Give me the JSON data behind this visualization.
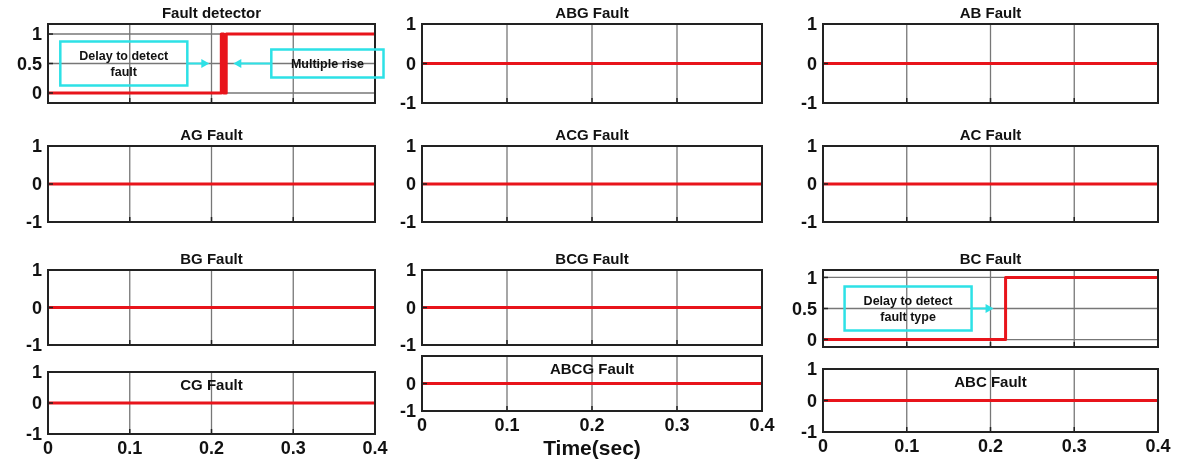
{
  "chart_data": [
    {
      "type": "line",
      "title": "Fault detector",
      "x": [
        0,
        0.212,
        0.212,
        0.215,
        0.215,
        0.218,
        0.218,
        0.4
      ],
      "series": [
        {
          "color": "#e8141b",
          "values": [
            0,
            0,
            1,
            1,
            0,
            0,
            1,
            1
          ]
        }
      ],
      "xlim": [
        0,
        0.4
      ],
      "xticks": [
        0,
        0.1,
        0.2,
        0.3,
        0.4
      ],
      "ylim": [
        -0.17,
        1.17
      ],
      "yticks": [
        0,
        0.5,
        1
      ],
      "grid": true,
      "tick_labels": "y",
      "annotations": [
        "Delay to detect fault",
        "Multiple rise"
      ]
    },
    {
      "type": "line",
      "title": "ABG Fault",
      "x": [
        0,
        0.4
      ],
      "series": [
        {
          "color": "#e8141b",
          "values": [
            0,
            0
          ]
        }
      ],
      "xlim": [
        0,
        0.4
      ],
      "xticks": [
        0,
        0.1,
        0.2,
        0.3,
        0.4
      ],
      "ylim": [
        -1,
        1
      ],
      "yticks": [
        -1,
        0,
        1
      ],
      "grid": true,
      "tick_labels": "y"
    },
    {
      "type": "line",
      "title": "AB Fault",
      "x": [
        0,
        0.4
      ],
      "series": [
        {
          "color": "#e8141b",
          "values": [
            0,
            0
          ]
        }
      ],
      "xlim": [
        0,
        0.4
      ],
      "xticks": [
        0,
        0.1,
        0.2,
        0.3,
        0.4
      ],
      "ylim": [
        -1,
        1
      ],
      "yticks": [
        -1,
        0,
        1
      ],
      "grid": true,
      "tick_labels": "y"
    },
    {
      "type": "line",
      "title": "AG Fault",
      "x": [
        0,
        0.4
      ],
      "series": [
        {
          "color": "#e8141b",
          "values": [
            0,
            0
          ]
        }
      ],
      "xlim": [
        0,
        0.4
      ],
      "xticks": [
        0,
        0.1,
        0.2,
        0.3,
        0.4
      ],
      "ylim": [
        -1,
        1
      ],
      "yticks": [
        -1,
        0,
        1
      ],
      "grid": true,
      "tick_labels": "y"
    },
    {
      "type": "line",
      "title": "ACG Fault",
      "x": [
        0,
        0.4
      ],
      "series": [
        {
          "color": "#e8141b",
          "values": [
            0,
            0
          ]
        }
      ],
      "xlim": [
        0,
        0.4
      ],
      "xticks": [
        0,
        0.1,
        0.2,
        0.3,
        0.4
      ],
      "ylim": [
        -1,
        1
      ],
      "yticks": [
        -1,
        0,
        1
      ],
      "grid": true,
      "tick_labels": "y"
    },
    {
      "type": "line",
      "title": "AC Fault",
      "x": [
        0,
        0.4
      ],
      "series": [
        {
          "color": "#e8141b",
          "values": [
            0,
            0
          ]
        }
      ],
      "xlim": [
        0,
        0.4
      ],
      "xticks": [
        0,
        0.1,
        0.2,
        0.3,
        0.4
      ],
      "ylim": [
        -1,
        1
      ],
      "yticks": [
        -1,
        0,
        1
      ],
      "grid": true,
      "tick_labels": "y"
    },
    {
      "type": "line",
      "title": "BG Fault",
      "x": [
        0,
        0.4
      ],
      "series": [
        {
          "color": "#e8141b",
          "values": [
            0,
            0
          ]
        }
      ],
      "xlim": [
        0,
        0.4
      ],
      "xticks": [
        0,
        0.1,
        0.2,
        0.3,
        0.4
      ],
      "ylim": [
        -1,
        1
      ],
      "yticks": [
        -1,
        0,
        1
      ],
      "grid": true,
      "tick_labels": "y"
    },
    {
      "type": "line",
      "title": "BCG Fault",
      "x": [
        0,
        0.4
      ],
      "series": [
        {
          "color": "#e8141b",
          "values": [
            0,
            0
          ]
        }
      ],
      "xlim": [
        0,
        0.4
      ],
      "xticks": [
        0,
        0.1,
        0.2,
        0.3,
        0.4
      ],
      "ylim": [
        -1,
        1
      ],
      "yticks": [
        -1,
        0,
        1
      ],
      "grid": true,
      "tick_labels": "y"
    },
    {
      "type": "line",
      "title": "BC Fault",
      "x": [
        0,
        0.218,
        0.218,
        0.4
      ],
      "series": [
        {
          "color": "#e8141b",
          "values": [
            0,
            0,
            1,
            1
          ]
        }
      ],
      "xlim": [
        0,
        0.4
      ],
      "xticks": [
        0,
        0.1,
        0.2,
        0.3,
        0.4
      ],
      "ylim": [
        -0.12,
        1.12
      ],
      "yticks": [
        0,
        0.5,
        1
      ],
      "grid": true,
      "tick_labels": "y",
      "annotations": [
        "Delay to detect fault type"
      ]
    },
    {
      "type": "line",
      "title": "CG Fault",
      "x": [
        0,
        0.4
      ],
      "series": [
        {
          "color": "#e8141b",
          "values": [
            0,
            0
          ]
        }
      ],
      "xlim": [
        0,
        0.4
      ],
      "xticks": [
        0,
        0.1,
        0.2,
        0.3,
        0.4
      ],
      "ylim": [
        -1,
        1
      ],
      "yticks": [
        -1,
        0,
        1
      ],
      "grid": true
    },
    {
      "type": "line",
      "title": "ABCG Fault",
      "xlabel": "Time(sec)",
      "x": [
        0,
        0.4
      ],
      "series": [
        {
          "color": "#e8141b",
          "values": [
            0,
            0
          ]
        }
      ],
      "xlim": [
        0,
        0.4
      ],
      "xticks": [
        0,
        0.1,
        0.2,
        0.3,
        0.4
      ],
      "ylim": [
        -1,
        1
      ],
      "yticks": [
        -1,
        0,
        {
          "value": 1,
          "label": null
        }
      ],
      "grid": true
    },
    {
      "type": "line",
      "title": "ABC Fault",
      "x": [
        0,
        0.4
      ],
      "series": [
        {
          "color": "#e8141b",
          "values": [
            0,
            0
          ]
        }
      ],
      "xlim": [
        0,
        0.4
      ],
      "xticks": [
        0,
        0.1,
        0.2,
        0.3,
        0.4
      ],
      "ylim": [
        -1,
        1
      ],
      "yticks": [
        -1,
        0,
        1
      ],
      "grid": true
    }
  ]
}
